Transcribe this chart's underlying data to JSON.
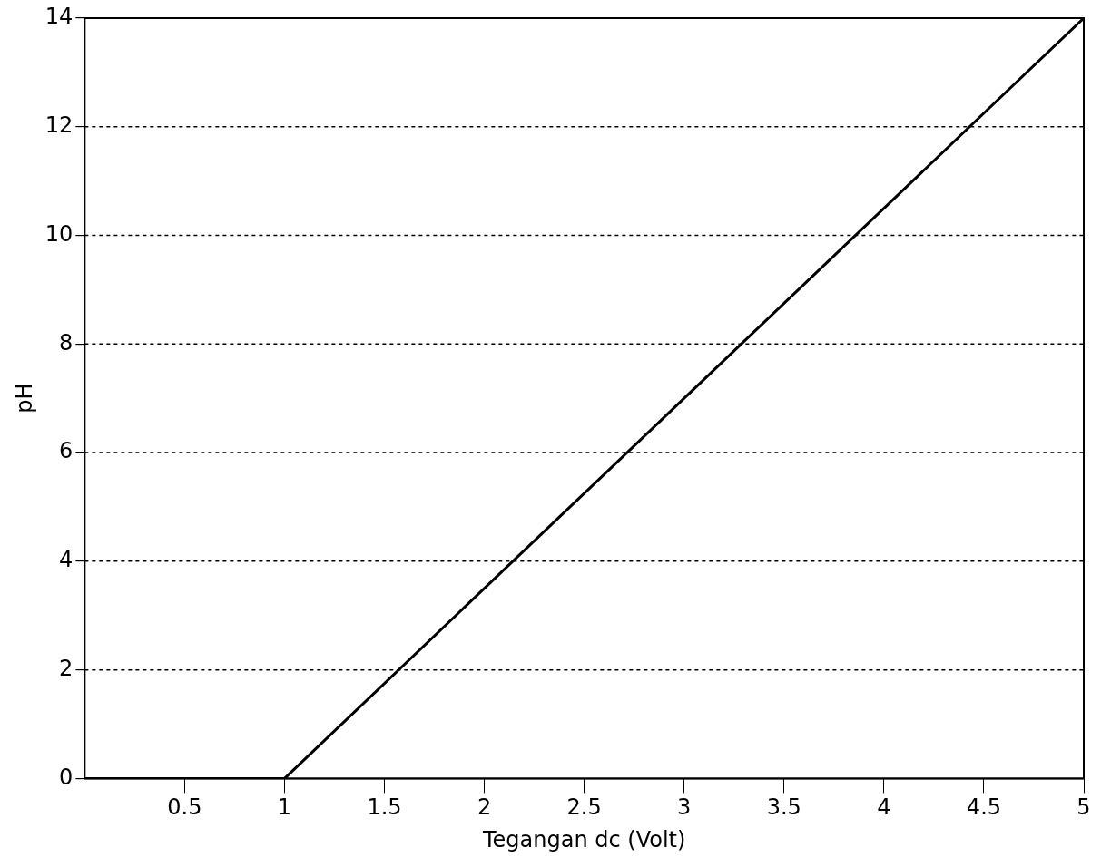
{
  "chart_data": {
    "type": "line",
    "xlabel": "Tegangan dc (Volt)",
    "ylabel": "pH",
    "x": [
      0,
      1,
      5
    ],
    "series": [
      {
        "color": "#000000",
        "values": [
          0,
          0,
          14
        ]
      }
    ],
    "xlim": [
      0,
      5
    ],
    "xticks": [
      0.5,
      1,
      1.5,
      2,
      2.5,
      3,
      3.5,
      4,
      4.5,
      5
    ],
    "ylim": [
      0,
      14
    ],
    "yticks": [
      0,
      2,
      4,
      6,
      8,
      10,
      12,
      14
    ],
    "grid": "y",
    "legend": false,
    "marker": "none",
    "line_style": "solid"
  }
}
